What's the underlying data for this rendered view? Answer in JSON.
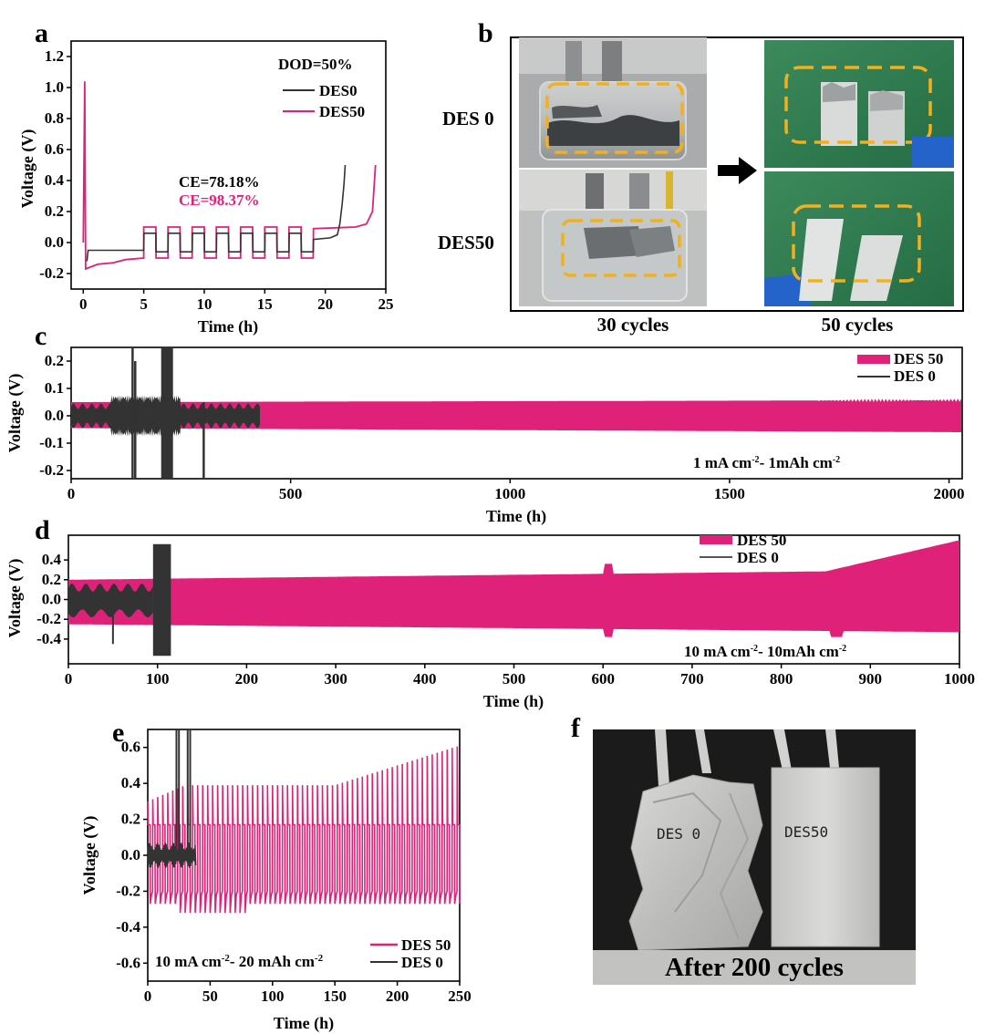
{
  "colors": {
    "des50": "#e0217a",
    "des0": "#333333",
    "dash": "#f2b01e",
    "arrow": "#000000"
  },
  "chart_data": [
    {
      "panel": "a",
      "type": "line",
      "xlabel": "Time (h)",
      "ylabel": "Voltage (V)",
      "xlim": [
        -1,
        25
      ],
      "ylim": [
        -0.3,
        1.3
      ],
      "xticks": [
        "0",
        "5",
        "10",
        "15",
        "20",
        "25"
      ],
      "yticks": [
        "-0.2",
        "0.0",
        "0.2",
        "0.4",
        "0.6",
        "0.8",
        "1.0",
        "1.2"
      ],
      "annotation": "DOD=50%",
      "ce_des0": "CE=78.18%",
      "ce_des50": "CE=98.37%",
      "series": [
        {
          "name": "DES0",
          "description": "plating ~-0.05 V until 5 h, ~7 cycles of ±0.06 V, stripping to 0.5 V at ~21.7 h"
        },
        {
          "name": "DES50",
          "description": "initial spike 1.04 V at 0.2 h, plating -0.17 to -0.1 V, 7 cycles of +0.1/-0.1 V, stripping to 0.5 V at ~24.2 h"
        }
      ]
    },
    {
      "panel": "c",
      "type": "line",
      "xlabel": "Time (h)",
      "ylabel": "Voltage (V)",
      "xlim": [
        0,
        2030
      ],
      "ylim": [
        -0.23,
        0.25
      ],
      "xticks": [
        "0",
        "500",
        "1000",
        "1500",
        "2000"
      ],
      "yticks": [
        "-0.2",
        "-0.1",
        "0.0",
        "0.1",
        "0.2"
      ],
      "condition_main": "1 mA cm",
      "condition_sup1": "-2",
      "condition_mid": "- 1mAh cm",
      "condition_sup2": "-2",
      "series": [
        {
          "name": "DES 50",
          "duration_h": 2030,
          "amplitude_v": [
            0.05,
            0.065
          ]
        },
        {
          "name": "DES  0",
          "duration_h": 430,
          "amplitude_v": [
            0.04,
            0.25
          ]
        }
      ]
    },
    {
      "panel": "d",
      "type": "line",
      "xlabel": "Time (h)",
      "ylabel": "Voltage (V)",
      "xlim": [
        0,
        1000
      ],
      "ylim": [
        -0.65,
        0.65
      ],
      "xticks": [
        "0",
        "100",
        "200",
        "300",
        "400",
        "500",
        "600",
        "700",
        "800",
        "900",
        "1000"
      ],
      "yticks": [
        "-0.4",
        "-0.2",
        "0.0",
        "0.2",
        "0.4"
      ],
      "condition_main": "10 mA cm",
      "condition_sup1": "-2",
      "condition_mid": "- 10mAh cm",
      "condition_sup2": "-2",
      "series": [
        {
          "name": "DES 50",
          "duration_h": 1000,
          "amplitude_v": [
            0.25,
            0.6
          ]
        },
        {
          "name": "DES  0",
          "duration_h": 115,
          "amplitude_v": [
            0.15,
            0.56
          ]
        }
      ]
    },
    {
      "panel": "e",
      "type": "line",
      "xlabel": "Time (h)",
      "ylabel": "Voltage (V)",
      "xlim": [
        0,
        250
      ],
      "ylim": [
        -0.7,
        0.7
      ],
      "xticks": [
        "0",
        "50",
        "100",
        "150",
        "200",
        "250"
      ],
      "yticks": [
        "-0.6",
        "-0.4",
        "-0.2",
        "0.0",
        "0.2",
        "0.4",
        "0.6"
      ],
      "condition_main": "10 mA cm",
      "condition_sup1": "-2",
      "condition_mid": "- 20 mAh cm",
      "condition_sup2": "-2",
      "series": [
        {
          "name": "DES 50",
          "duration_h": 250,
          "peak_v": [
            0.3,
            0.62
          ],
          "low_v": [
            -0.32,
            -0.27
          ]
        },
        {
          "name": "DES  0",
          "duration_h": 38,
          "amplitude_v": [
            0.05,
            0.7
          ]
        }
      ]
    }
  ],
  "panel_b": {
    "letter": "b",
    "row_labels": [
      "DES 0",
      "DES50"
    ],
    "col_labels": [
      "30 cycles",
      "50 cycles"
    ]
  },
  "panel_f": {
    "letter": "f",
    "caption": "After 200 cycles",
    "left_pouch_label": "DES 0",
    "right_pouch_label": "DES50"
  }
}
